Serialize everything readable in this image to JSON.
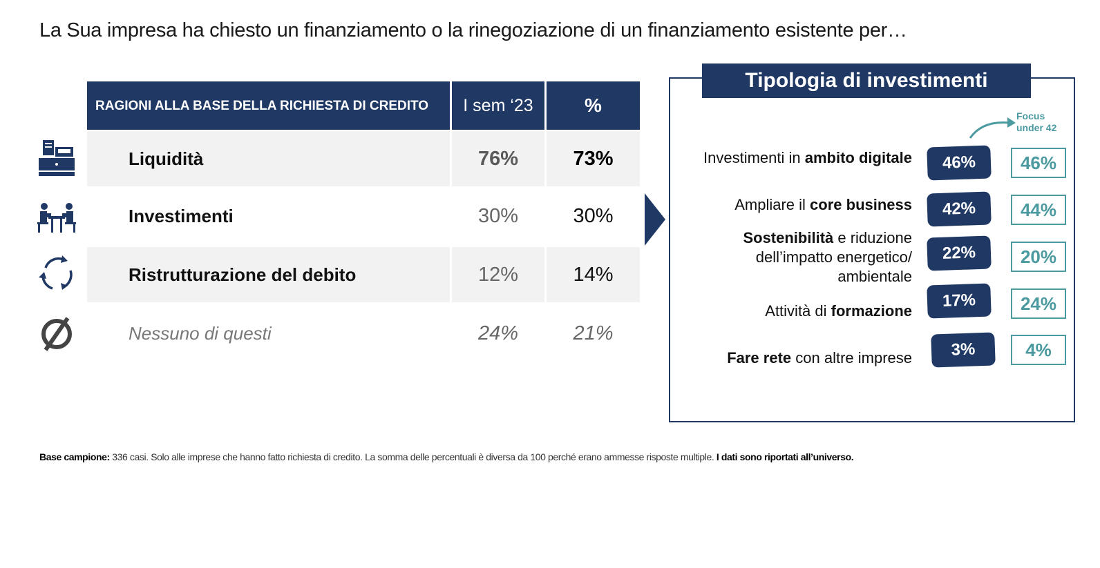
{
  "title": "La Sua impresa ha chiesto un finanziamento o la rinegoziazione di un finanziamento esistente per…",
  "colors": {
    "navy": "#1f3864",
    "teal": "#4a9aa0",
    "row_shade": "#f2f2f2"
  },
  "table": {
    "header_main": "RAGIONI ALLA BASE DELLA RICHIESTA DI CREDITO",
    "header_col1": "I sem ‘23",
    "header_col2": "%",
    "rows": [
      {
        "label": "Liquidità",
        "v1": "76%",
        "v2": "73%",
        "icon": "cash-register-icon"
      },
      {
        "label": "Investimenti",
        "v1": "30%",
        "v2": "30%",
        "icon": "meeting-icon"
      },
      {
        "label": "Ristrutturazione del debito",
        "v1": "12%",
        "v2": "14%",
        "icon": "refresh-cycle-icon"
      },
      {
        "label": "Nessuno di questi",
        "v1": "24%",
        "v2": "21%",
        "icon": "none-icon"
      }
    ]
  },
  "investments": {
    "title": "Tipologia di investimenti",
    "focus_label": "Focus under 42",
    "items": [
      {
        "pre": "Investimenti in ",
        "bold": "ambito digitale",
        "post": "",
        "value": "46%",
        "focus": "46%"
      },
      {
        "pre": "Ampliare il ",
        "bold": "core business",
        "post": "",
        "value": "42%",
        "focus": "44%"
      },
      {
        "pre": "",
        "bold": "Sostenibilità",
        "post": " e riduzione dell’impatto energetico/ ambientale",
        "value": "22%",
        "focus": "20%"
      },
      {
        "pre": "Attività di ",
        "bold": "formazione",
        "post": "",
        "value": "17%",
        "focus": "24%"
      },
      {
        "pre": "",
        "bold": "Fare rete",
        "post": " con altre imprese",
        "value": "3%",
        "focus": "4%"
      }
    ]
  },
  "footnote": {
    "bold_lead": "Base campione:",
    "text": " 336 casi. Solo alle imprese che hanno fatto richiesta di credito. La somma delle percentuali è diversa da 100 perché erano ammesse risposte multiple. ",
    "bold_tail": "I dati sono riportati all’universo."
  },
  "chart_data": [
    {
      "type": "table",
      "title": "RAGIONI ALLA BASE DELLA RICHIESTA DI CREDITO",
      "columns": [
        "I sem ‘23",
        "%"
      ],
      "categories": [
        "Liquidità",
        "Investimenti",
        "Ristrutturazione del debito",
        "Nessuno di questi"
      ],
      "series": [
        {
          "name": "I sem ‘23",
          "values": [
            76,
            30,
            12,
            24
          ]
        },
        {
          "name": "%",
          "values": [
            73,
            30,
            14,
            21
          ]
        }
      ]
    },
    {
      "type": "table",
      "title": "Tipologia di investimenti",
      "categories": [
        "Investimenti in ambito digitale",
        "Ampliare il core business",
        "Sostenibilità e riduzione dell’impatto energetico/ ambientale",
        "Attività di formazione",
        "Fare rete con altre imprese"
      ],
      "series": [
        {
          "values": [
            46,
            42,
            22,
            17,
            3
          ]
        },
        {
          "name": "Focus under 42",
          "values": [
            46,
            44,
            20,
            24,
            4
          ]
        }
      ]
    }
  ]
}
